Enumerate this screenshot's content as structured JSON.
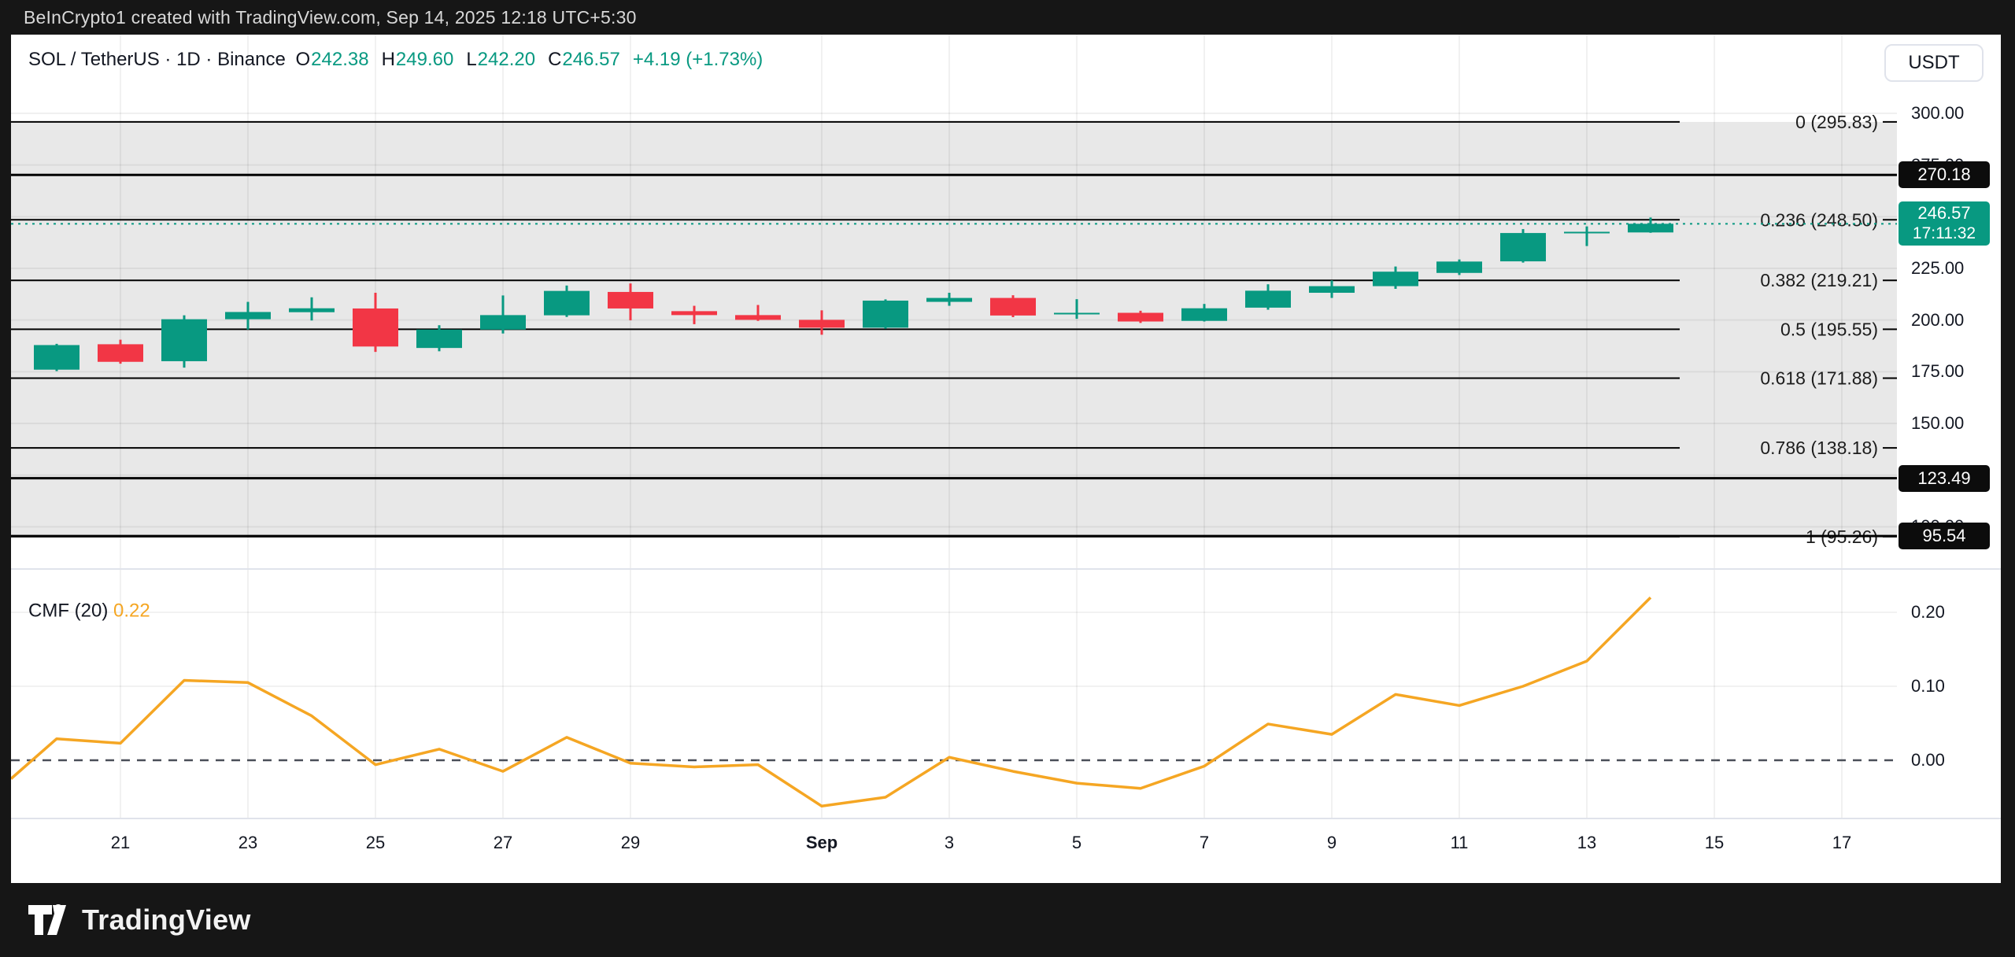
{
  "topbar": {
    "text": "BeInCrypto1 created with TradingView.com, Sep 14, 2025 12:18 UTC+5:30"
  },
  "legend": {
    "instrument": "SOL / TetherUS · 1D · Binance",
    "o_label": "O",
    "o_value": "242.38",
    "h_label": "H",
    "h_value": "249.60",
    "l_label": "L",
    "l_value": "242.20",
    "c_label": "C",
    "c_value": "246.57",
    "change": "+4.19 (+1.73%)"
  },
  "header": {
    "currency_button": "USDT"
  },
  "indicator": {
    "name": "CMF (20)",
    "value": "0.22"
  },
  "footer": {
    "brand": "TradingView"
  },
  "colors": {
    "up": "#089981",
    "down": "#F23645",
    "cmf_line": "#F5A623",
    "badge_black": "#0c0c0c",
    "badge_green": "#089981",
    "fib_band": "#e8e8e8",
    "frame_dark": "#161616"
  },
  "chart_data": [
    {
      "type": "candlestick",
      "title": "SOL / TetherUS · 1D · Binance",
      "ylabel": "USDT",
      "dates": [
        "Aug 20",
        "Aug 21",
        "Aug 22",
        "Aug 23",
        "Aug 24",
        "Aug 25",
        "Aug 26",
        "Aug 27",
        "Aug 28",
        "Aug 29",
        "Aug 30",
        "Aug 31",
        "Sep 1",
        "Sep 2",
        "Sep 3",
        "Sep 4",
        "Sep 5",
        "Sep 6",
        "Sep 7",
        "Sep 8",
        "Sep 9",
        "Sep 10",
        "Sep 11",
        "Sep 12",
        "Sep 13",
        "Sep 14"
      ],
      "ohlc": [
        [
          176.0,
          188.5,
          175.3,
          187.9
        ],
        [
          188.3,
          190.5,
          178.9,
          179.8
        ],
        [
          180.1,
          202.3,
          177.0,
          200.4
        ],
        [
          200.4,
          208.8,
          195.4,
          203.9
        ],
        [
          203.8,
          211.0,
          199.8,
          205.7
        ],
        [
          205.6,
          213.2,
          184.6,
          187.2
        ],
        [
          186.5,
          197.5,
          184.9,
          195.4
        ],
        [
          195.4,
          211.9,
          193.5,
          202.4
        ],
        [
          202.3,
          216.7,
          201.5,
          214.1
        ],
        [
          213.6,
          217.7,
          199.9,
          205.6
        ],
        [
          204.3,
          206.9,
          198.0,
          202.4
        ],
        [
          202.4,
          207.3,
          199.6,
          200.1
        ],
        [
          200.1,
          204.7,
          192.9,
          196.3
        ],
        [
          196.3,
          210.0,
          195.8,
          209.4
        ],
        [
          208.8,
          213.2,
          206.9,
          210.7
        ],
        [
          210.7,
          212.0,
          201.4,
          202.2
        ],
        [
          202.8,
          210.1,
          200.6,
          203.5
        ],
        [
          203.5,
          204.5,
          198.6,
          199.3
        ],
        [
          199.6,
          207.8,
          199.3,
          205.7
        ],
        [
          206.0,
          217.3,
          205.0,
          214.2
        ],
        [
          213.2,
          219.2,
          210.7,
          216.4
        ],
        [
          216.4,
          225.9,
          215.1,
          223.4
        ],
        [
          222.8,
          229.3,
          221.8,
          228.3
        ],
        [
          228.4,
          244.0,
          227.8,
          242.1
        ],
        [
          242.3,
          245.3,
          235.8,
          242.7
        ],
        [
          242.38,
          249.6,
          242.2,
          246.57
        ]
      ],
      "ylim": [
        88,
        308
      ],
      "price_axis_ticks": [
        "300.00",
        "275.00",
        "250.00",
        "225.00",
        "200.00",
        "175.00",
        "150.00",
        "125.00",
        "100.00"
      ],
      "price_axis_tick_values": [
        300,
        275,
        250,
        225,
        200,
        175,
        150,
        125,
        100
      ],
      "fib_levels": [
        {
          "ratio": "0",
          "price": 295.83,
          "label": "0 (295.83)"
        },
        {
          "ratio": "0.236",
          "price": 248.5,
          "label": "0.236 (248.50)"
        },
        {
          "ratio": "0.382",
          "price": 219.21,
          "label": "0.382 (219.21)"
        },
        {
          "ratio": "0.5",
          "price": 195.55,
          "label": "0.5 (195.55)"
        },
        {
          "ratio": "0.618",
          "price": 171.88,
          "label": "0.618 (171.88)"
        },
        {
          "ratio": "0.786",
          "price": 138.18,
          "label": "0.786 (138.18)"
        },
        {
          "ratio": "1",
          "price": 95.26,
          "label": "1 (95.26)"
        }
      ],
      "horizontal_lines": [
        {
          "price": 270.18,
          "label": "270.18"
        },
        {
          "price": 123.49,
          "label": "123.49"
        },
        {
          "price": 95.54,
          "label": "95.54"
        }
      ],
      "last_price": {
        "value": 246.57,
        "label": "246.57",
        "countdown": "17:11:32"
      },
      "x_tick_labels": [
        {
          "label": "21",
          "index": 1
        },
        {
          "label": "23",
          "index": 3
        },
        {
          "label": "25",
          "index": 5
        },
        {
          "label": "27",
          "index": 7
        },
        {
          "label": "29",
          "index": 9
        },
        {
          "label": "Sep",
          "index": 12,
          "bold": true
        },
        {
          "label": "3",
          "index": 14
        },
        {
          "label": "5",
          "index": 16
        },
        {
          "label": "7",
          "index": 18
        },
        {
          "label": "9",
          "index": 20
        },
        {
          "label": "11",
          "index": 22
        },
        {
          "label": "13",
          "index": 24
        },
        {
          "label": "15",
          "index": 26
        },
        {
          "label": "17",
          "index": 28
        }
      ],
      "legend_ohlc": {
        "open": "242.38",
        "high": "249.60",
        "low": "242.20",
        "close": "246.57",
        "change": "+4.19 (+1.73%)"
      }
    },
    {
      "type": "line",
      "title": "CMF (20)",
      "current_value": 0.22,
      "edge_value": -0.025,
      "values": [
        0.029,
        0.023,
        0.108,
        0.105,
        0.06,
        -0.006,
        0.015,
        -0.015,
        0.031,
        -0.004,
        -0.009,
        -0.006,
        -0.062,
        -0.05,
        0.004,
        -0.015,
        -0.031,
        -0.038,
        -0.008,
        0.049,
        0.035,
        0.089,
        0.074,
        0.1,
        0.134,
        0.22
      ],
      "axis_ticks": [
        "0.20",
        "0.10",
        "0.00"
      ],
      "axis_tick_values": [
        0.2,
        0.1,
        0.0
      ],
      "zero_line_style": "dashed",
      "grid": true
    }
  ]
}
